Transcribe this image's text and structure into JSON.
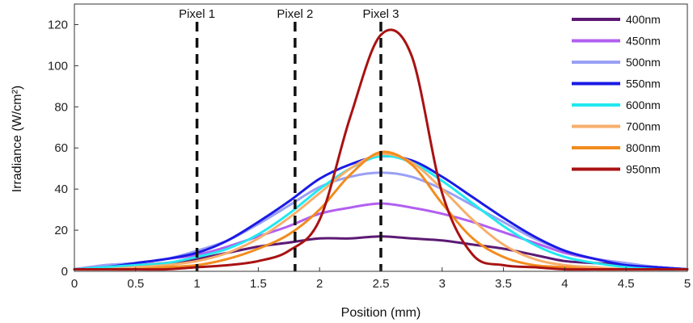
{
  "chart_data": {
    "type": "line",
    "title": "",
    "xlabel": "Position (mm)",
    "ylabel": "Irradiance (W/cm²)",
    "xlim": [
      0,
      5
    ],
    "ylim": [
      0,
      130
    ],
    "xticks": [
      "0",
      "0.5",
      "1",
      "1.5",
      "2",
      "2.5",
      "3",
      "3.5",
      "4",
      "4.5",
      "5"
    ],
    "yticks": [
      "0",
      "20",
      "40",
      "60",
      "80",
      "100",
      "120"
    ],
    "grid": false,
    "legend_position": "top-right",
    "x": [
      0,
      0.25,
      0.5,
      0.75,
      1.0,
      1.25,
      1.5,
      1.75,
      2.0,
      2.25,
      2.5,
      2.75,
      3.0,
      3.25,
      3.5,
      3.75,
      4.0,
      4.25,
      4.5,
      4.75,
      5.0
    ],
    "series": [
      {
        "name": "400nm",
        "color": "#5c1a73",
        "values": [
          1,
          2,
          3,
          4,
          6,
          9,
          12,
          14,
          16,
          16,
          17,
          16,
          15,
          13,
          11,
          8,
          5,
          4,
          3,
          2,
          1
        ]
      },
      {
        "name": "450nm",
        "color": "#b25ff0",
        "values": [
          1,
          3,
          4,
          6,
          8,
          12,
          17,
          22,
          28,
          31,
          33,
          31,
          28,
          24,
          19,
          14,
          9,
          6,
          4,
          2,
          1
        ]
      },
      {
        "name": "500nm",
        "color": "#9aa0f5",
        "values": [
          1,
          3,
          4,
          6,
          10,
          15,
          23,
          32,
          41,
          46,
          48,
          46,
          40,
          32,
          24,
          16,
          10,
          6,
          4,
          2,
          1
        ]
      },
      {
        "name": "550nm",
        "color": "#1a1ae6",
        "values": [
          1,
          2,
          4,
          6,
          9,
          15,
          24,
          34,
          45,
          52,
          56,
          54,
          46,
          36,
          26,
          17,
          10,
          6,
          3,
          2,
          1
        ]
      },
      {
        "name": "600nm",
        "color": "#22e8ef",
        "values": [
          1,
          2,
          3,
          4,
          7,
          11,
          18,
          28,
          40,
          50,
          56,
          53,
          44,
          33,
          22,
          13,
          7,
          4,
          2,
          1,
          1
        ]
      },
      {
        "name": "700nm",
        "color": "#f7ae6b",
        "values": [
          1,
          1,
          2,
          3,
          5,
          9,
          16,
          26,
          38,
          50,
          57,
          53,
          40,
          25,
          13,
          6,
          3,
          2,
          1,
          1,
          1
        ]
      },
      {
        "name": "800nm",
        "color": "#f28c1f",
        "values": [
          1,
          1,
          1,
          2,
          3,
          6,
          11,
          18,
          30,
          47,
          58,
          52,
          33,
          16,
          7,
          3,
          2,
          1,
          1,
          1,
          1
        ]
      },
      {
        "name": "950nm",
        "color": "#a81212",
        "values": [
          1,
          1,
          1,
          1,
          2,
          3,
          5,
          10,
          25,
          75,
          115,
          105,
          38,
          8,
          3,
          2,
          1,
          1,
          1,
          1,
          1
        ]
      }
    ],
    "vlines": [
      {
        "x": 1.0,
        "label": "Pixel 1"
      },
      {
        "x": 1.8,
        "label": "Pixel 2"
      },
      {
        "x": 2.5,
        "label": "Pixel 3"
      }
    ]
  }
}
